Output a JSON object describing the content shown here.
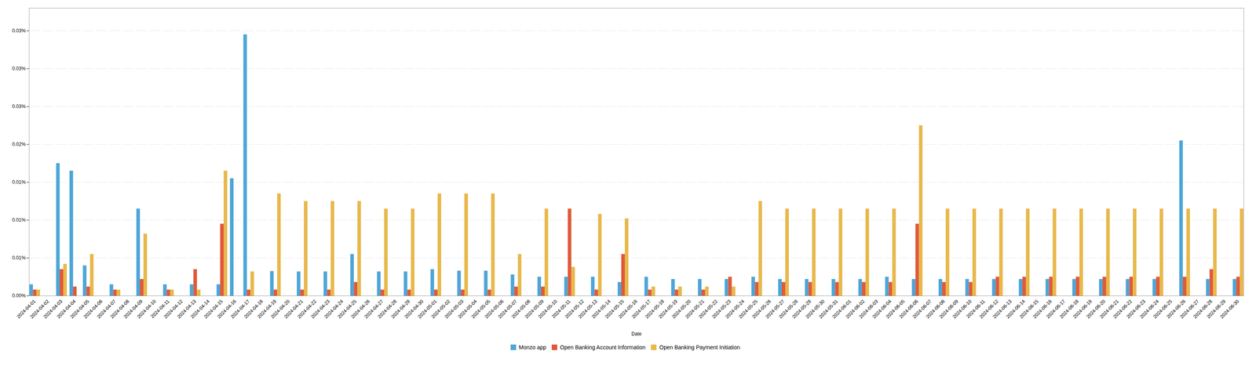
{
  "chart_data": {
    "type": "bar",
    "xlabel": "Date",
    "categories": [
      "2024-04-01",
      "2024-04-02",
      "2024-04-03",
      "2024-04-04",
      "2024-04-05",
      "2024-04-06",
      "2024-04-07",
      "2024-04-08",
      "2024-04-09",
      "2024-04-10",
      "2024-04-11",
      "2024-04-12",
      "2024-04-13",
      "2024-04-14",
      "2024-04-15",
      "2024-04-16",
      "2024-04-17",
      "2024-04-18",
      "2024-04-19",
      "2024-04-20",
      "2024-04-21",
      "2024-04-22",
      "2024-04-23",
      "2024-04-24",
      "2024-04-25",
      "2024-04-26",
      "2024-04-27",
      "2024-04-28",
      "2024-04-29",
      "2024-04-30",
      "2024-05-01",
      "2024-05-02",
      "2024-05-03",
      "2024-05-04",
      "2024-05-05",
      "2024-05-06",
      "2024-05-07",
      "2024-05-08",
      "2024-05-09",
      "2024-05-10",
      "2024-05-11",
      "2024-05-12",
      "2024-05-13",
      "2024-05-14",
      "2024-05-15",
      "2024-05-16",
      "2024-05-17",
      "2024-05-18",
      "2024-05-19",
      "2024-05-20",
      "2024-05-21",
      "2024-05-22",
      "2024-05-23",
      "2024-05-24",
      "2024-05-25",
      "2024-05-26",
      "2024-05-27",
      "2024-05-28",
      "2024-05-29",
      "2024-05-30",
      "2024-05-31",
      "2024-06-01",
      "2024-06-02",
      "2024-06-03",
      "2024-06-04",
      "2024-06-05",
      "2024-06-06",
      "2024-06-07",
      "2024-06-08",
      "2024-06-09",
      "2024-06-10",
      "2024-06-11",
      "2024-06-12",
      "2024-06-13",
      "2024-06-14",
      "2024-06-15",
      "2024-06-16",
      "2024-06-17",
      "2024-06-18",
      "2024-06-19",
      "2024-06-20",
      "2024-06-21",
      "2024-06-22",
      "2024-06-23",
      "2024-06-24",
      "2024-06-25",
      "2024-06-26",
      "2024-06-27",
      "2024-06-28",
      "2024-06-29",
      "2024-06-30"
    ],
    "series": [
      {
        "name": "Monzo app",
        "color": "#4da6d8",
        "values": [
          1.5e-05,
          0.0,
          0.000175,
          0.000165,
          4e-05,
          0.0,
          1.5e-05,
          0.0,
          0.000115,
          0.0,
          1.5e-05,
          0.0,
          1.5e-05,
          0.0,
          1.5e-05,
          0.000155,
          0.000345,
          0.0,
          3.25e-05,
          0.0,
          3.2e-05,
          0.0,
          3.2e-05,
          0.0,
          5.5e-05,
          0.0,
          3.2e-05,
          0.0,
          3.2e-05,
          0.0,
          3.5e-05,
          0.0,
          3.3e-05,
          0.0,
          3.3e-05,
          0.0,
          2.8e-05,
          0.0,
          2.5e-05,
          0.0,
          2.5e-05,
          0.0,
          2.5e-05,
          0.0,
          1.8e-05,
          0.0,
          2.5e-05,
          0.0,
          2.2e-05,
          0.0,
          2.2e-05,
          0.0,
          2.2e-05,
          0.0,
          2.5e-05,
          0.0,
          2.2e-05,
          0.0,
          2.2e-05,
          0.0,
          2.2e-05,
          0.0,
          2.2e-05,
          0.0,
          2.5e-05,
          0.0,
          2.2e-05,
          0.0,
          2.2e-05,
          0.0,
          2.2e-05,
          0.0,
          2.2e-05,
          0.0,
          2.2e-05,
          0.0,
          2.2e-05,
          0.0,
          2.2e-05,
          0.0,
          2.2e-05,
          0.0,
          2.2e-05,
          0.0,
          2.2e-05,
          0.0,
          0.000205,
          0.0,
          2.2e-05,
          0.0,
          2.2e-05
        ]
      },
      {
        "name": "Open Banking Account Information",
        "color": "#e05a3a",
        "values": [
          8e-06,
          0.0,
          3.5e-05,
          1.2e-05,
          1.2e-05,
          0.0,
          8e-06,
          0.0,
          2.2e-05,
          0.0,
          8e-06,
          0.0,
          3.5e-05,
          0.0,
          9.5e-05,
          0.0,
          8e-06,
          0.0,
          8e-06,
          0.0,
          8e-06,
          0.0,
          8e-06,
          0.0,
          1.8e-05,
          0.0,
          8e-06,
          0.0,
          8e-06,
          0.0,
          8e-06,
          0.0,
          8e-06,
          0.0,
          8e-06,
          0.0,
          1.2e-05,
          0.0,
          1.2e-05,
          0.0,
          0.000115,
          0.0,
          8e-06,
          0.0,
          5.5e-05,
          0.0,
          8e-06,
          0.0,
          8e-06,
          0.0,
          8e-06,
          0.0,
          2.5e-05,
          0.0,
          1.8e-05,
          0.0,
          1.8e-05,
          0.0,
          1.8e-05,
          0.0,
          1.8e-05,
          0.0,
          1.8e-05,
          0.0,
          1.8e-05,
          0.0,
          9.5e-05,
          0.0,
          1.8e-05,
          0.0,
          1.8e-05,
          0.0,
          2.5e-05,
          0.0,
          2.5e-05,
          0.0,
          2.5e-05,
          0.0,
          2.5e-05,
          0.0,
          2.5e-05,
          0.0,
          2.5e-05,
          0.0,
          2.5e-05,
          0.0,
          2.5e-05,
          0.0,
          3.5e-05,
          0.0,
          2.5e-05
        ]
      },
      {
        "name": "Open Banking Payment Initiation",
        "color": "#e8b84b",
        "values": [
          8e-06,
          0.0,
          4.2e-05,
          0.0,
          5.5e-05,
          0.0,
          8e-06,
          0.0,
          8.2e-05,
          0.0,
          8e-06,
          0.0,
          8e-06,
          0.0,
          0.000165,
          0.0,
          3.2e-05,
          0.0,
          0.000135,
          0.0,
          0.000125,
          0.0,
          0.000125,
          0.0,
          0.000125,
          0.0,
          0.000115,
          0.0,
          0.000115,
          0.0,
          0.000135,
          0.0,
          0.000135,
          0.0,
          0.000135,
          0.0,
          5.5e-05,
          0.0,
          0.000115,
          0.0,
          3.8e-05,
          0.0,
          0.000108,
          0.0,
          0.000102,
          0.0,
          1.2e-05,
          0.0,
          1.2e-05,
          0.0,
          1.2e-05,
          0.0,
          1.2e-05,
          0.0,
          0.000125,
          0.0,
          0.000115,
          0.0,
          0.000115,
          0.0,
          0.000115,
          0.0,
          0.000115,
          0.0,
          0.000115,
          0.0,
          0.000225,
          0.0,
          0.000115,
          0.0,
          0.000115,
          0.0,
          0.000115,
          0.0,
          0.000115,
          0.0,
          0.000115,
          0.0,
          0.000115,
          0.0,
          0.000115,
          0.0,
          0.000115,
          0.0,
          0.000115,
          0.0,
          0.000115,
          0.0,
          0.000115,
          0.0,
          0.000115
        ]
      }
    ],
    "ylim": [
      0,
      0.00038
    ],
    "yticks": [
      {
        "value": 0,
        "label": "0.00%"
      },
      {
        "value": 5e-05,
        "label": "0.01%"
      },
      {
        "value": 0.0001,
        "label": "0.01%"
      },
      {
        "value": 0.00015,
        "label": "0.01%"
      },
      {
        "value": 0.0002,
        "label": "0.02%"
      },
      {
        "value": 0.00025,
        "label": "0.03%"
      },
      {
        "value": 0.0003,
        "label": "0.03%"
      },
      {
        "value": 0.00035,
        "label": "0.03%"
      }
    ],
    "grid": true,
    "legend": "bottom"
  }
}
